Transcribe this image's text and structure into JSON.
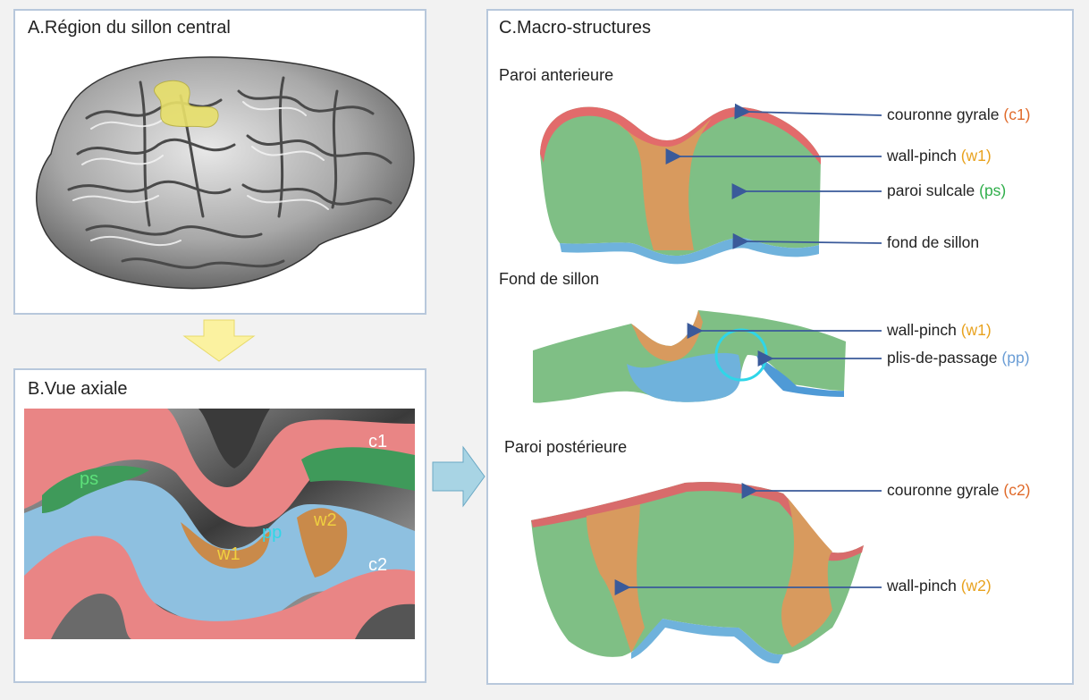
{
  "panels": {
    "a": {
      "title": "A.Région du sillon central"
    },
    "b": {
      "title": "B.Vue axiale",
      "labels": {
        "ps": "ps",
        "pp": "pp",
        "w1": "w1",
        "w2": "w2",
        "c1": "c1",
        "c2": "c2"
      }
    },
    "c": {
      "title": "C.Macro-structures",
      "sections": [
        {
          "title": "Paroi anterieure",
          "labels": [
            {
              "text": "couronne gyrale ",
              "abbr": "(c1)",
              "color": "#e06a2a"
            },
            {
              "text": "wall-pinch ",
              "abbr": "(w1)",
              "color": "#e8a21e"
            },
            {
              "text": "paroi sulcale ",
              "abbr": "(ps)",
              "color": "#2fae4a"
            },
            {
              "text": "fond de sillon",
              "abbr": "",
              "color": "#222222"
            }
          ]
        },
        {
          "title": "Fond de sillon",
          "labels": [
            {
              "text": "wall-pinch ",
              "abbr": "(w1)",
              "color": "#e8a21e"
            },
            {
              "text": "plis-de-passage ",
              "abbr": "(pp)",
              "color": "#6b9ed6"
            }
          ]
        },
        {
          "title": "Paroi postérieure",
          "labels": [
            {
              "text": "couronne gyrale ",
              "abbr": "(c2)",
              "color": "#e06a2a"
            },
            {
              "text": "wall-pinch ",
              "abbr": "(w2)",
              "color": "#e8a21e"
            }
          ]
        }
      ]
    }
  },
  "colors": {
    "crown": "#e67b7b",
    "wall": "#c98a4a",
    "sulcal": "#5fae6a",
    "fundus": "#7fb4dc",
    "highlight": "#e8e06a",
    "arrow": "#3a5a9a",
    "cyan_circle": "#2fd6e8"
  }
}
